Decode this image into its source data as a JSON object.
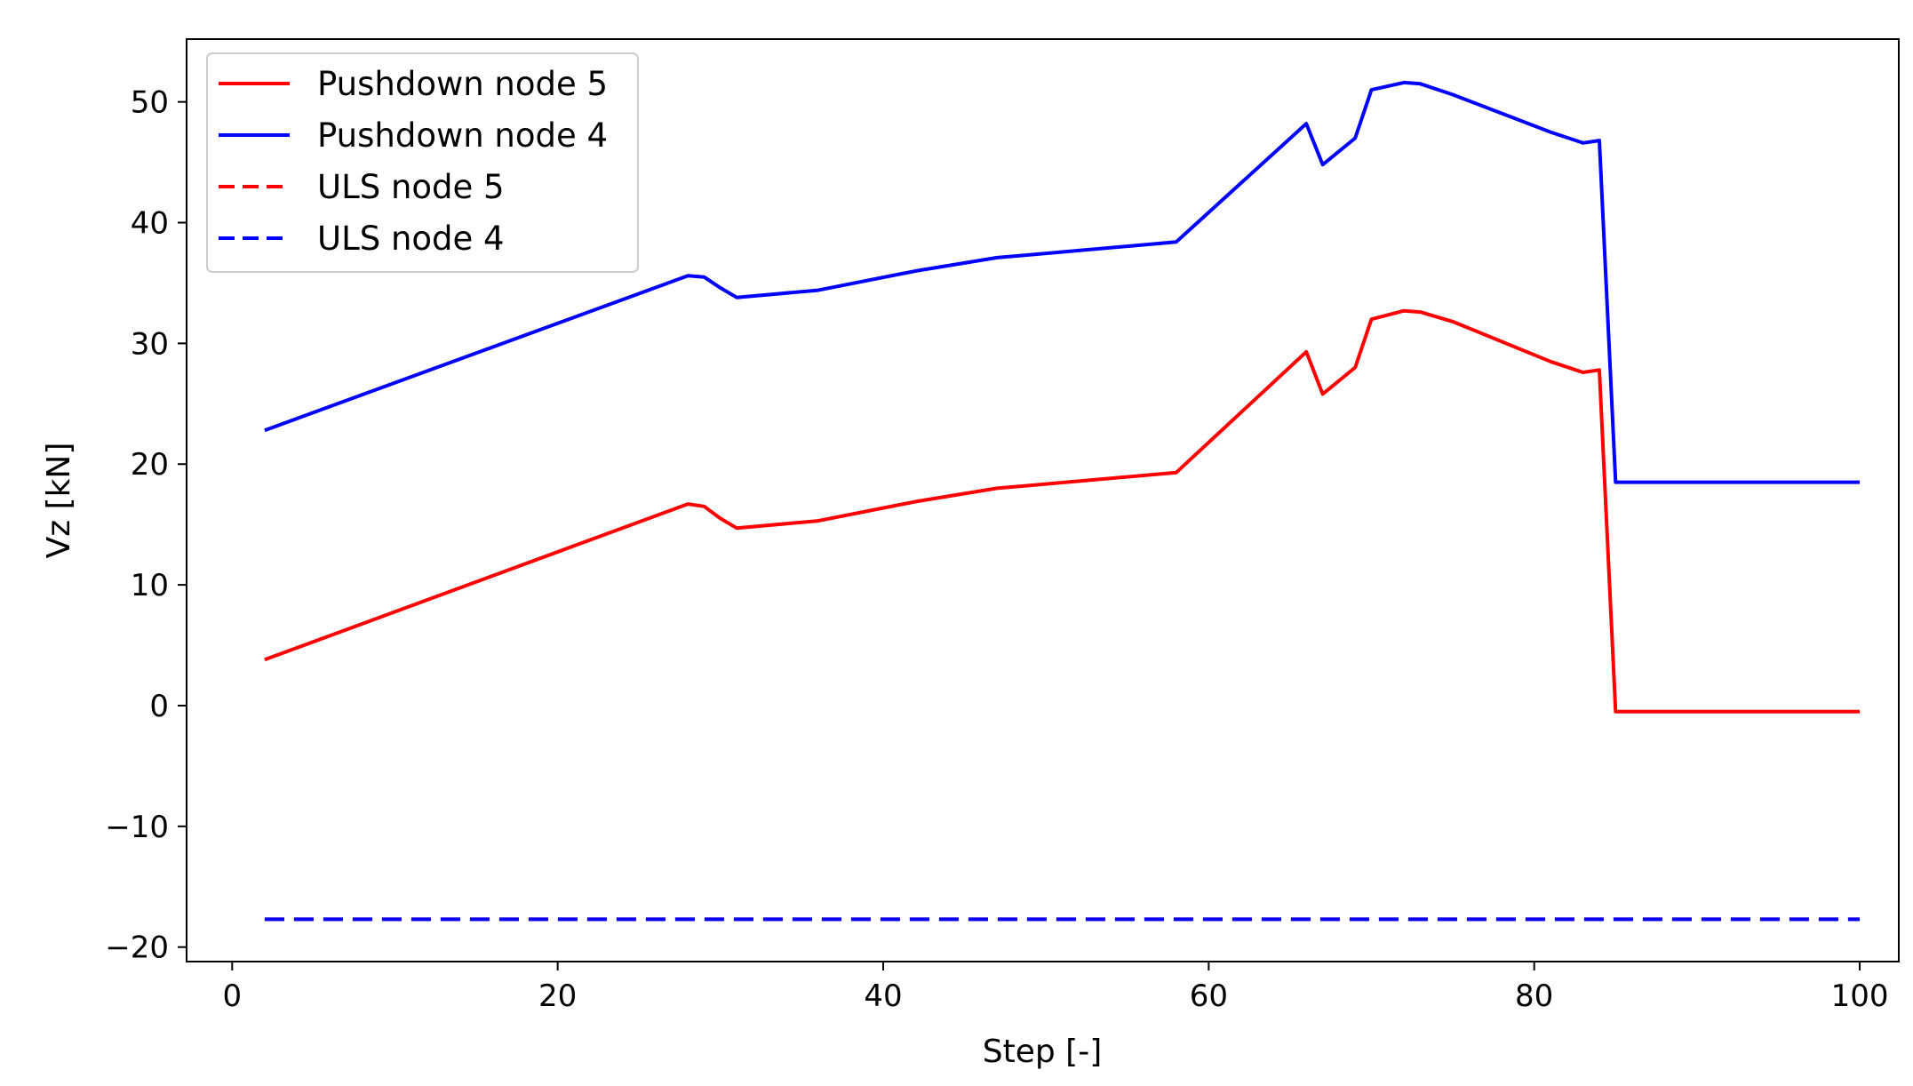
{
  "chart_data": {
    "type": "line",
    "title": "",
    "xlabel": "Step [-]",
    "ylabel": "Vz [kN]",
    "xlim": [
      -2.8,
      102.4
    ],
    "ylim": [
      -21.2,
      55.2
    ],
    "xticks": [
      0,
      20,
      40,
      60,
      80,
      100
    ],
    "yticks": [
      -20,
      -10,
      0,
      10,
      20,
      30,
      40,
      50
    ],
    "xtick_labels": [
      "0",
      "20",
      "40",
      "60",
      "80",
      "100"
    ],
    "ytick_labels": [
      "−20",
      "−10",
      "0",
      "10",
      "20",
      "30",
      "40",
      "50"
    ],
    "grid": false,
    "legend_position": "upper-left",
    "series": [
      {
        "name": "Pushdown node 5",
        "color": "#ff0000",
        "style": "solid",
        "x": [
          2,
          28,
          29,
          30,
          31,
          36,
          42,
          47,
          58,
          66,
          67,
          69,
          70,
          72,
          73,
          75,
          81,
          83,
          84,
          85,
          100
        ],
        "y": [
          3.8,
          16.7,
          16.5,
          15.5,
          14.7,
          15.3,
          16.9,
          18.0,
          19.3,
          29.3,
          25.8,
          28.0,
          32.0,
          32.7,
          32.6,
          31.8,
          28.5,
          27.6,
          27.8,
          -0.5,
          -0.5
        ]
      },
      {
        "name": "Pushdown node 4",
        "color": "#0000ff",
        "style": "solid",
        "x": [
          2,
          28,
          29,
          30,
          31,
          36,
          42,
          47,
          58,
          66,
          67,
          69,
          70,
          72,
          73,
          75,
          81,
          83,
          84,
          85,
          100
        ],
        "y": [
          22.8,
          35.6,
          35.5,
          34.6,
          33.8,
          34.4,
          36.0,
          37.1,
          38.4,
          48.2,
          44.8,
          47.0,
          51.0,
          51.6,
          51.5,
          50.6,
          47.5,
          46.6,
          46.8,
          18.5,
          18.5
        ]
      },
      {
        "name": "ULS node 5",
        "color": "#ff0000",
        "style": "dashed",
        "x": [
          2,
          100
        ],
        "y": [
          -17.7,
          -17.7
        ]
      },
      {
        "name": "ULS node 4",
        "color": "#0000ff",
        "style": "dashed",
        "x": [
          2,
          100
        ],
        "y": [
          -17.7,
          -17.7
        ]
      }
    ]
  }
}
